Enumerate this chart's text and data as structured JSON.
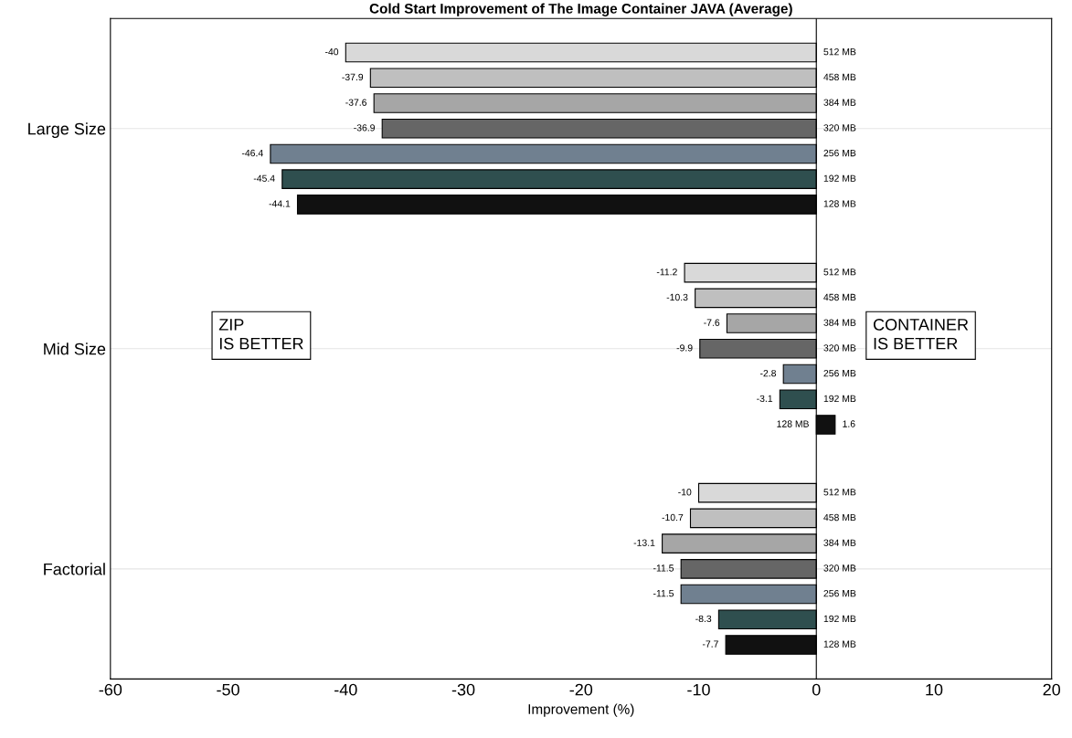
{
  "chart_data": {
    "type": "bar",
    "orientation": "horizontal",
    "title": "Cold Start Improvement of The Image Container JAVA (Average)",
    "xlabel": "Improvement (%)",
    "categories": [
      "Large Size",
      "Mid Size",
      "Factorial"
    ],
    "series": [
      {
        "name": "512 MB",
        "color": "#d9d9d9",
        "values": [
          -40,
          -11.2,
          -10
        ]
      },
      {
        "name": "458 MB",
        "color": "#bfbfbf",
        "values": [
          -37.9,
          -10.3,
          -10.7
        ]
      },
      {
        "name": "384 MB",
        "color": "#a6a6a6",
        "values": [
          -37.6,
          -7.6,
          -13.1
        ]
      },
      {
        "name": "320 MB",
        "color": "#666666",
        "values": [
          -36.9,
          -9.9,
          -11.5
        ]
      },
      {
        "name": "256 MB",
        "color": "#708090",
        "values": [
          -46.4,
          -2.8,
          -11.5
        ]
      },
      {
        "name": "192 MB",
        "color": "#2f4f4f",
        "values": [
          -45.4,
          -3.1,
          -8.3
        ]
      },
      {
        "name": "128 MB",
        "color": "#111111",
        "values": [
          -44.1,
          1.6,
          -7.7
        ]
      }
    ],
    "xlim": [
      -60,
      20
    ],
    "xticks": [
      -60,
      -50,
      -40,
      -30,
      -20,
      -10,
      0,
      10,
      20
    ],
    "grid": "y",
    "data_labels": true,
    "ref_lines": [
      {
        "axis": "x",
        "value": 0,
        "color": "#000000"
      }
    ],
    "annotations": [
      "ZIP\nIS BETTER",
      "CONTAINER\nIS BETTER"
    ]
  }
}
